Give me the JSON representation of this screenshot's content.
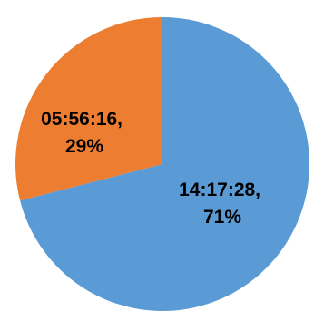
{
  "chart_data": {
    "type": "pie",
    "title": "",
    "slices": [
      {
        "label_line1": "14:17:28,",
        "label_line2": "71%",
        "value": 71,
        "color": "#5B9BD5"
      },
      {
        "label_line1": "05:56:16,",
        "label_line2": "29%",
        "value": 29,
        "color": "#ED7D31"
      }
    ],
    "start": "12 o'clock",
    "direction": "clockwise",
    "legend": "none"
  }
}
